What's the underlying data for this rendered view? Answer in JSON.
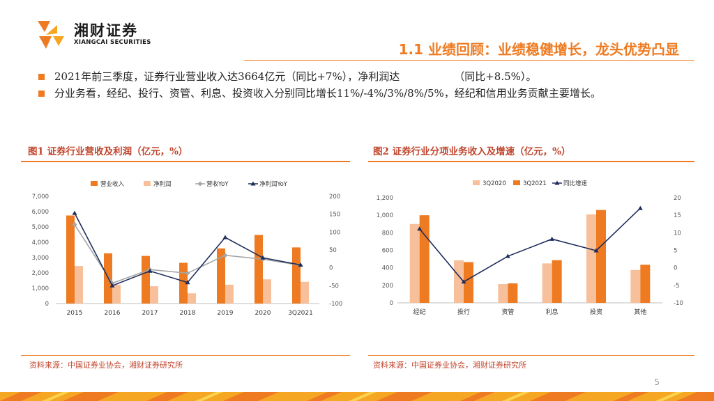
{
  "header": {
    "logo_cn": "湘财证券",
    "logo_en": "XIANGCAI SECURITIES",
    "title": "1.1 业绩回顾：业绩稳健增长，龙头优势凸显"
  },
  "bullets": [
    {
      "pre": "2021年前三季度，证券行业营业收入达3664亿元（同比+7%），净利润达",
      "post": "（同比+8.5%）。"
    },
    {
      "pre": "分业务看，经纪、投行、资管、利息、投资收入分别同比增长11%/-4%/3%/8%/5%，经纪和信用业务贡献主要增长。",
      "post": ""
    }
  ],
  "figure1": {
    "title": "图1 证券行业营收及利润（亿元，%）",
    "source": "资料来源：中国证券业协会，湘财证券研究所"
  },
  "figure2": {
    "title": "图2 证券行业分项业务收入及增速（亿元，%）",
    "source": "资料来源：中国证券业协会，湘财证券研究所"
  },
  "page_number": "5",
  "colors": {
    "accent": "#EE7B22",
    "light": "#F8C09A",
    "gray": "#A6A6A6",
    "navy": "#1F2D5C",
    "title_red": "#C0452D"
  },
  "chart_data": [
    {
      "type": "bar",
      "categories": [
        "2015",
        "2016",
        "2017",
        "2018",
        "2019",
        "2020",
        "3Q2021"
      ],
      "series": [
        {
          "name": "营业收入",
          "kind": "bar",
          "axis": "left",
          "color": "#EE7B22",
          "values": [
            5750,
            3280,
            3110,
            2660,
            3600,
            4480,
            3664
          ]
        },
        {
          "name": "净利润",
          "kind": "bar",
          "axis": "left",
          "color": "#F8C09A",
          "values": [
            2450,
            1230,
            1130,
            670,
            1230,
            1580,
            1420
          ]
        },
        {
          "name": "营收YoY",
          "kind": "line",
          "axis": "right",
          "color": "#A6A6A6",
          "marker": "diamond",
          "values": [
            121,
            -43,
            -5,
            -15,
            35,
            24,
            7
          ]
        },
        {
          "name": "净利润YoY",
          "kind": "line",
          "axis": "right",
          "color": "#1F2D5C",
          "marker": "triangle",
          "values": [
            153,
            -50,
            -9,
            -41,
            85,
            28,
            8
          ]
        }
      ],
      "ylim": [
        0,
        7000
      ],
      "yticks": [
        "0",
        "1,000",
        "2,000",
        "3,000",
        "4,000",
        "5,000",
        "6,000",
        "7,000"
      ],
      "y2lim": [
        -100,
        200
      ],
      "y2ticks": [
        "-100",
        "-50",
        "0",
        "50",
        "100",
        "150",
        "200"
      ],
      "legend": "top"
    },
    {
      "type": "bar",
      "categories": [
        "经纪",
        "投行",
        "资管",
        "利息",
        "投资",
        "其他"
      ],
      "series": [
        {
          "name": "3Q2020",
          "kind": "bar",
          "axis": "left",
          "color": "#F8C09A",
          "values": [
            900,
            485,
            215,
            450,
            1010,
            375
          ]
        },
        {
          "name": "3Q2021",
          "kind": "bar",
          "axis": "left",
          "color": "#EE7B22",
          "values": [
            1000,
            465,
            222,
            487,
            1060,
            435
          ]
        },
        {
          "name": "同比增速",
          "kind": "line",
          "axis": "right",
          "color": "#1F2D5C",
          "marker": "triangle",
          "values": [
            11.1,
            -4,
            3.3,
            8.2,
            4.9,
            17
          ]
        }
      ],
      "ylim": [
        0,
        1200
      ],
      "yticks": [
        "0",
        "200",
        "400",
        "600",
        "800",
        "1,000",
        "1,200"
      ],
      "y2lim": [
        -10,
        20
      ],
      "y2ticks": [
        "-10",
        "-5",
        "0",
        "5",
        "10",
        "15",
        "20"
      ],
      "legend": "top"
    }
  ]
}
